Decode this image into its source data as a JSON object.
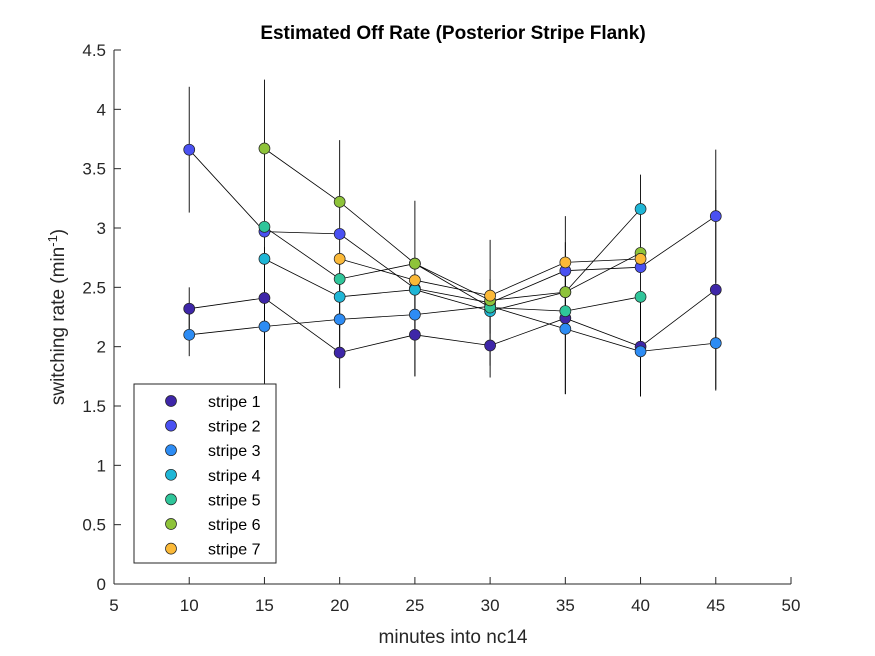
{
  "chart_data": {
    "type": "line",
    "title": "Estimated Off Rate (Posterior Stripe Flank)",
    "xlabel": "minutes into nc14",
    "ylabel": "switching rate (min",
    "ylabel_sup": "-1",
    "ylabel_close": ")",
    "xlim": [
      5,
      50
    ],
    "ylim": [
      0,
      4.5
    ],
    "xticks": [
      5,
      10,
      15,
      20,
      25,
      30,
      35,
      40,
      45,
      50
    ],
    "yticks": [
      0,
      0.5,
      1,
      1.5,
      2,
      2.5,
      3,
      3.5,
      4,
      4.5
    ],
    "xtick_labels": [
      "5",
      "10",
      "15",
      "20",
      "25",
      "30",
      "35",
      "40",
      "45",
      "50"
    ],
    "ytick_labels": [
      "0",
      "0.5",
      "1",
      "1.5",
      "2",
      "2.5",
      "3",
      "3.5",
      "4",
      "4.5"
    ],
    "grid": false,
    "legend_position": "bottom-left",
    "series": [
      {
        "name": "stripe 1",
        "color": "#3e26a8",
        "x": [
          10,
          15,
          20,
          25,
          30,
          35,
          40,
          45
        ],
        "y": [
          2.32,
          2.41,
          1.95,
          2.1,
          2.01,
          2.24,
          2.0,
          2.48
        ],
        "err": [
          0.18,
          0.43,
          0.3,
          0.35,
          0.27,
          0.64,
          0.42,
          0.84
        ]
      },
      {
        "name": "stripe 2",
        "color": "#4a51f2",
        "x": [
          10,
          15,
          20,
          25,
          30,
          35,
          40,
          45
        ],
        "y": [
          3.66,
          2.97,
          2.95,
          2.49,
          2.37,
          2.64,
          2.67,
          3.1
        ],
        "err": [
          0.53,
          1.28,
          0.79,
          0.74,
          0.53,
          0.46,
          0.78,
          0.56
        ]
      },
      {
        "name": "stripe 3",
        "color": "#2d8cf4",
        "x": [
          10,
          15,
          20,
          25,
          30,
          35,
          40,
          45
        ],
        "y": [
          2.1,
          2.17,
          2.23,
          2.27,
          2.34,
          2.15,
          1.96,
          2.03
        ],
        "err": [
          0.18,
          0.2,
          0.3,
          0.2,
          0.23,
          0.55,
          0.38,
          0.4
        ]
      },
      {
        "name": "stripe 4",
        "color": "#1fb6d6",
        "x": [
          15,
          20,
          25,
          30,
          35,
          40
        ],
        "y": [
          2.74,
          2.42,
          2.48,
          2.3,
          2.46,
          3.16
        ],
        "err": [
          0,
          0,
          0,
          0,
          0,
          0
        ]
      },
      {
        "name": "stripe 5",
        "color": "#2fc59a",
        "x": [
          15,
          20,
          25,
          30,
          35,
          40
        ],
        "y": [
          3.01,
          2.57,
          2.7,
          2.33,
          2.3,
          2.42
        ],
        "err": [
          0,
          0,
          0,
          0,
          0,
          0
        ]
      },
      {
        "name": "stripe 6",
        "color": "#8ec33a",
        "x": [
          15,
          20,
          25,
          30,
          35,
          40
        ],
        "y": [
          3.67,
          3.22,
          2.7,
          2.39,
          2.46,
          2.79
        ],
        "err": [
          0,
          0,
          0,
          0,
          0,
          0
        ]
      },
      {
        "name": "stripe 7",
        "color": "#fbb938",
        "x": [
          20,
          25,
          30,
          35,
          40
        ],
        "y": [
          2.74,
          2.56,
          2.43,
          2.71,
          2.74
        ],
        "err": [
          0,
          0,
          0,
          0,
          0
        ]
      }
    ]
  }
}
